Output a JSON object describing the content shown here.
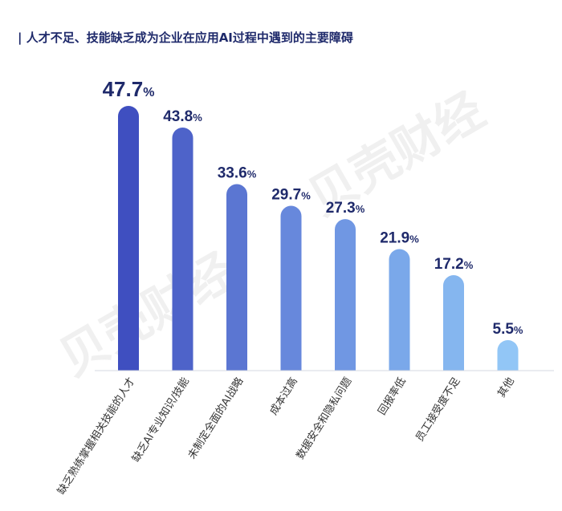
{
  "title": "| 人才不足、技能缺乏成为企业在应用AI过程中遇到的主要障碍",
  "watermark": "贝壳财经",
  "chart_data": {
    "type": "bar",
    "title": "| 人才不足、技能缺乏成为企业在应用AI过程中遇到的主要障碍",
    "categories": [
      "缺乏熟练掌握相关技能的人才",
      "缺乏AI专业知识/技能",
      "未制定全面的AI战略",
      "成本过高",
      "数据安全和隐私问题",
      "回报率低",
      "员工接受度不足",
      "其他"
    ],
    "values": [
      47.7,
      43.8,
      33.6,
      29.7,
      27.3,
      21.9,
      17.2,
      5.5
    ],
    "value_suffix": "%",
    "colors": [
      "#3f4fc0",
      "#4e63c9",
      "#5b76d2",
      "#6788dc",
      "#7097e3",
      "#7aa8ea",
      "#85b6ef",
      "#92c6f6"
    ],
    "label_color": "#1f2a6b",
    "ylim": [
      0,
      50
    ],
    "xlabel": "",
    "ylabel": "",
    "grid": false,
    "legend": "none"
  }
}
